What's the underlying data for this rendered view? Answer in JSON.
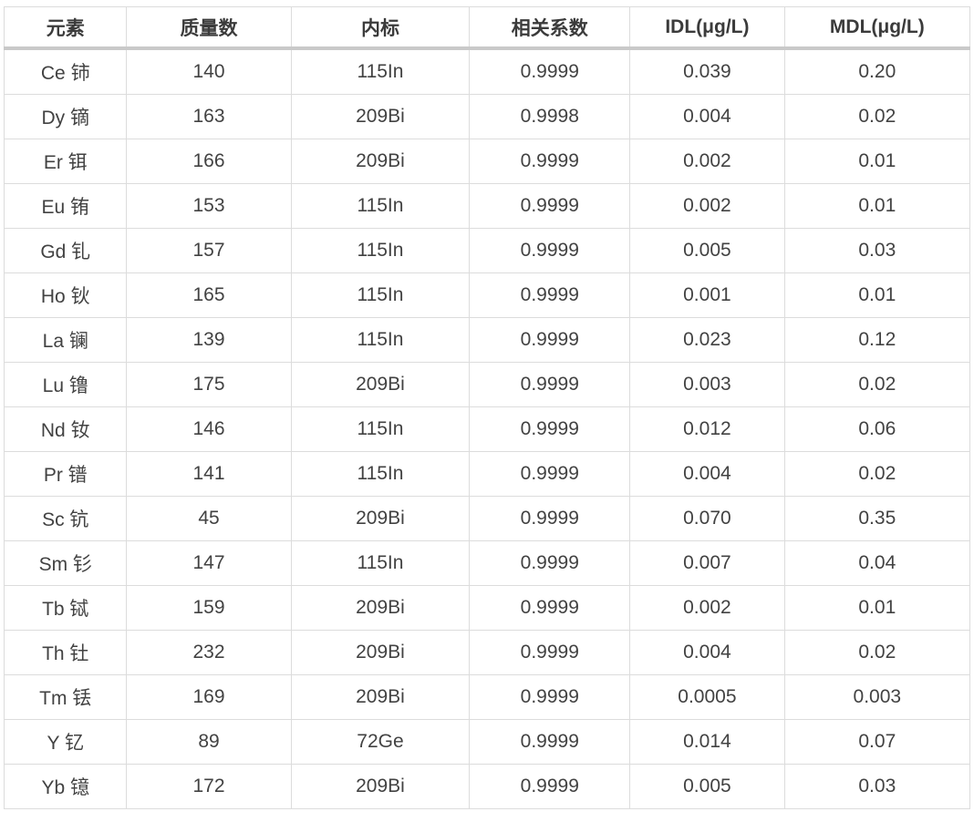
{
  "table": {
    "columns": [
      "元素",
      "质量数",
      "内标",
      "相关系数",
      "IDL(μg/L)",
      "MDL(μg/L)"
    ],
    "column_keys": [
      "element",
      "mass_number",
      "internal_standard",
      "correlation",
      "idl",
      "mdl"
    ],
    "rows": [
      {
        "element": "Ce 铈",
        "mass_number": "140",
        "internal_standard": "115In",
        "correlation": "0.9999",
        "idl": "0.039",
        "mdl": "0.20"
      },
      {
        "element": "Dy 镝",
        "mass_number": "163",
        "internal_standard": "209Bi",
        "correlation": "0.9998",
        "idl": "0.004",
        "mdl": "0.02"
      },
      {
        "element": "Er 铒",
        "mass_number": "166",
        "internal_standard": "209Bi",
        "correlation": "0.9999",
        "idl": "0.002",
        "mdl": "0.01"
      },
      {
        "element": "Eu 铕",
        "mass_number": "153",
        "internal_standard": "115In",
        "correlation": "0.9999",
        "idl": "0.002",
        "mdl": "0.01"
      },
      {
        "element": "Gd 钆",
        "mass_number": "157",
        "internal_standard": "115In",
        "correlation": "0.9999",
        "idl": "0.005",
        "mdl": "0.03"
      },
      {
        "element": "Ho 钬",
        "mass_number": "165",
        "internal_standard": "115In",
        "correlation": "0.9999",
        "idl": "0.001",
        "mdl": "0.01"
      },
      {
        "element": "La 镧",
        "mass_number": "139",
        "internal_standard": "115In",
        "correlation": "0.9999",
        "idl": "0.023",
        "mdl": "0.12"
      },
      {
        "element": "Lu 镥",
        "mass_number": "175",
        "internal_standard": "209Bi",
        "correlation": "0.9999",
        "idl": "0.003",
        "mdl": "0.02"
      },
      {
        "element": "Nd 钕",
        "mass_number": "146",
        "internal_standard": "115In",
        "correlation": "0.9999",
        "idl": "0.012",
        "mdl": "0.06"
      },
      {
        "element": "Pr 镨",
        "mass_number": "141",
        "internal_standard": "115In",
        "correlation": "0.9999",
        "idl": "0.004",
        "mdl": "0.02"
      },
      {
        "element": "Sc 钪",
        "mass_number": "45",
        "internal_standard": "209Bi",
        "correlation": "0.9999",
        "idl": "0.070",
        "mdl": "0.35"
      },
      {
        "element": "Sm 钐",
        "mass_number": "147",
        "internal_standard": "115In",
        "correlation": "0.9999",
        "idl": "0.007",
        "mdl": "0.04"
      },
      {
        "element": "Tb 铽",
        "mass_number": "159",
        "internal_standard": "209Bi",
        "correlation": "0.9999",
        "idl": "0.002",
        "mdl": "0.01"
      },
      {
        "element": "Th 钍",
        "mass_number": "232",
        "internal_standard": "209Bi",
        "correlation": "0.9999",
        "idl": "0.004",
        "mdl": "0.02"
      },
      {
        "element": "Tm 铥",
        "mass_number": "169",
        "internal_standard": "209Bi",
        "correlation": "0.9999",
        "idl": "0.0005",
        "mdl": "0.003"
      },
      {
        "element": "Y 钇",
        "mass_number": "89",
        "internal_standard": "72Ge",
        "correlation": "0.9999",
        "idl": "0.014",
        "mdl": "0.07"
      },
      {
        "element": "Yb 镱",
        "mass_number": "172",
        "internal_standard": "209Bi",
        "correlation": "0.9999",
        "idl": "0.005",
        "mdl": "0.03"
      }
    ]
  }
}
